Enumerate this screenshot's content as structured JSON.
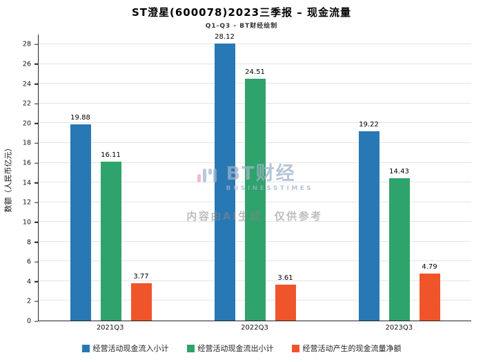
{
  "title": "ST澄星(600078)2023三季报 – 现金流量",
  "subtitle": "Q1-Q3 - BT财经绘制",
  "watermark": {
    "logo_text": "BT财经",
    "logo_sub": "BUSINESSTIMES",
    "disclaimer": "内容由AI生成，仅供参考"
  },
  "chart_data": {
    "type": "bar",
    "title": "ST澄星(600078)2023三季报 – 现金流量",
    "subtitle": "Q1-Q3 - BT财经绘制",
    "categories": [
      "2021Q3",
      "2022Q3",
      "2023Q3"
    ],
    "series": [
      {
        "name": "经营活动现金流入小计",
        "color": "#2878B5",
        "values": [
          19.88,
          28.12,
          19.22
        ]
      },
      {
        "name": "经营活动现金流出小计",
        "color": "#2EA36B",
        "values": [
          16.11,
          24.51,
          14.43
        ]
      },
      {
        "name": "经营活动产生的现金流量净额",
        "color": "#F0542B",
        "values": [
          3.77,
          3.61,
          4.79
        ]
      }
    ],
    "xlabel": "",
    "ylabel": "数额（人民币亿元）",
    "ylim": [
      0,
      29
    ],
    "ytick_step": 2,
    "grid": true,
    "legend_position": "bottom"
  }
}
